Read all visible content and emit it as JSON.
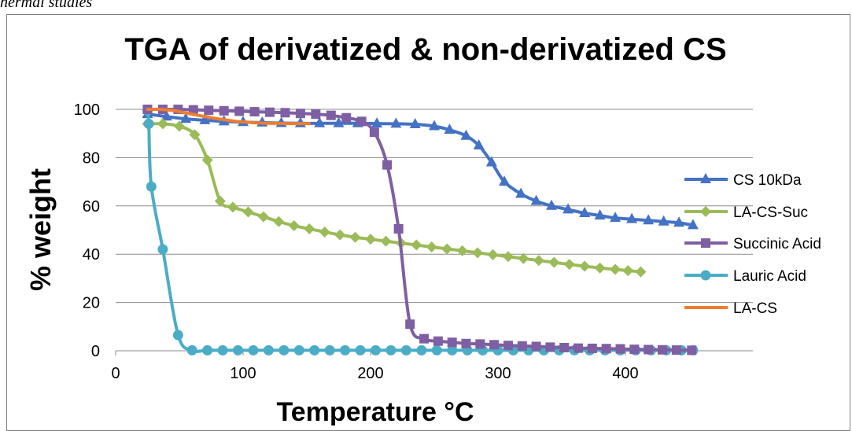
{
  "page": {
    "caption": "hermal studies"
  },
  "chart_data": {
    "type": "line",
    "title": "TGA of derivatized & non-derivatized CS",
    "xlabel": "Temperature °C",
    "ylabel": "% weight",
    "xlim": [
      0,
      500
    ],
    "ylim": [
      0,
      100
    ],
    "xticks": [
      0,
      100,
      200,
      300,
      400
    ],
    "yticks": [
      0,
      20,
      40,
      60,
      80,
      100
    ],
    "grid": "horizontal",
    "legend_position": "right",
    "series": [
      {
        "name": "CS 10kDa",
        "color": "#4472c4",
        "marker": "triangle",
        "x": [
          25,
          40,
          55,
          70,
          85,
          100,
          115,
          130,
          145,
          160,
          175,
          190,
          205,
          220,
          235,
          250,
          262,
          275,
          285,
          295,
          305,
          318,
          330,
          342,
          355,
          368,
          380,
          392,
          405,
          418,
          430,
          442,
          453
        ],
        "y": [
          98,
          97,
          96,
          95.5,
          95,
          94.7,
          94.5,
          94.3,
          94.2,
          94.2,
          94.2,
          94.2,
          94.1,
          94,
          93.8,
          93,
          91.5,
          89,
          85,
          78,
          70,
          65,
          62,
          60,
          58.5,
          57,
          56,
          55,
          54.5,
          54,
          53.5,
          53,
          52
        ]
      },
      {
        "name": "LA-CS-Suc",
        "color": "#9bbb59",
        "marker": "diamond",
        "x": [
          25,
          37,
          50,
          62,
          72,
          82,
          92,
          104,
          116,
          128,
          140,
          152,
          164,
          176,
          188,
          200,
          212,
          224,
          236,
          248,
          260,
          272,
          284,
          296,
          308,
          320,
          332,
          344,
          356,
          368,
          380,
          392,
          402,
          412
        ],
        "y": [
          94,
          94,
          93,
          89.5,
          79,
          62,
          59.5,
          57.5,
          55.5,
          53.5,
          51.8,
          50.5,
          49.2,
          48,
          47,
          46.2,
          45.4,
          44.6,
          43.8,
          43,
          42.2,
          41.4,
          40.6,
          39.8,
          39,
          38.2,
          37.4,
          36.6,
          35.8,
          35,
          34.3,
          33.7,
          33.2,
          32.7
        ]
      },
      {
        "name": "Succinic Acid",
        "color": "#7f5fa3",
        "marker": "square",
        "x": [
          25,
          37,
          49,
          61,
          73,
          85,
          97,
          109,
          121,
          133,
          145,
          157,
          169,
          181,
          193,
          203,
          213,
          222,
          231,
          242,
          253,
          264,
          275,
          286,
          297,
          308,
          319,
          330,
          341,
          352,
          363,
          374,
          385,
          396,
          407,
          418,
          429,
          440,
          452
        ],
        "y": [
          100,
          100,
          100,
          99.8,
          99.6,
          99.4,
          99.2,
          99,
          98.8,
          98.6,
          98.3,
          98,
          97.5,
          96.5,
          95,
          90.5,
          77,
          50.5,
          11,
          5,
          4,
          3.5,
          3,
          2.8,
          2.5,
          2.2,
          2,
          1.8,
          1.5,
          1.3,
          1.1,
          1,
          0.9,
          0.8,
          0.6,
          0.5,
          0.4,
          0.3,
          0.2
        ]
      },
      {
        "name": "Lauric Acid",
        "color": "#4bacc6",
        "marker": "circle",
        "x": [
          25,
          26,
          28,
          37,
          49,
          60,
          72,
          84,
          96,
          108,
          120,
          132,
          144,
          156,
          168,
          180,
          192,
          204,
          216,
          228,
          240,
          252,
          264,
          276,
          288,
          300,
          312,
          324,
          336,
          348,
          360,
          372,
          384,
          396,
          408,
          420,
          432,
          444,
          453
        ],
        "y": [
          99.5,
          94,
          68,
          42,
          6.5,
          0.2,
          0.2,
          0.2,
          0.2,
          0.2,
          0.2,
          0.2,
          0.2,
          0.2,
          0.2,
          0.2,
          0.2,
          0.2,
          0.2,
          0.2,
          0.2,
          0.2,
          0.2,
          0.2,
          0.2,
          0.2,
          0.2,
          0.2,
          0.2,
          0.2,
          0.2,
          0.2,
          0.2,
          0.2,
          0.2,
          0.2,
          0.2,
          0.2,
          0.2
        ]
      },
      {
        "name": "LA-CS",
        "color": "#ed7d31",
        "marker": "none",
        "x": [
          25,
          35,
          45,
          55,
          65,
          75,
          85,
          95,
          105,
          115,
          125,
          135,
          145,
          152
        ],
        "y": [
          100,
          100,
          99.5,
          98.5,
          97.5,
          96.5,
          95.7,
          95,
          94.6,
          94.3,
          94.2,
          94.1,
          94.1,
          94.1
        ]
      }
    ]
  }
}
